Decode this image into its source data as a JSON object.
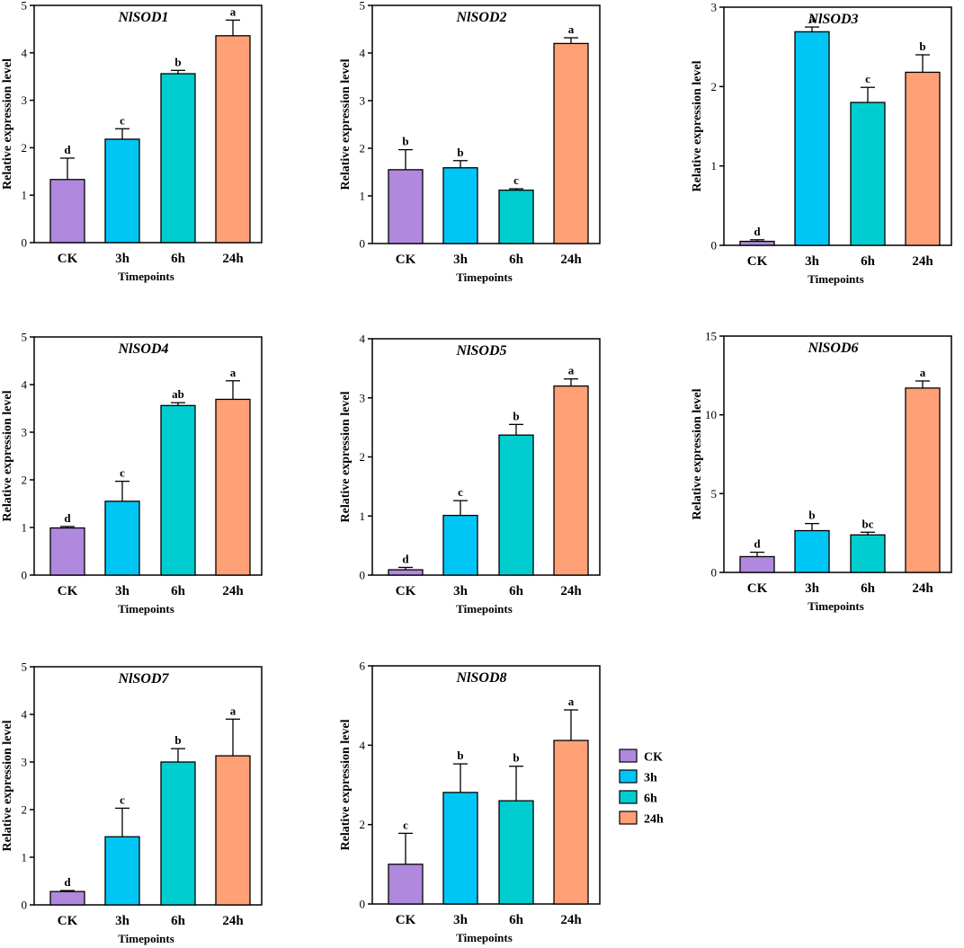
{
  "colors": {
    "CK": "#B088DD",
    "3h": "#00C6F5",
    "6h": "#00CDCF",
    "24h": "#FFA077"
  },
  "legend": {
    "items": [
      "CK",
      "3h",
      "6h",
      "24h"
    ]
  },
  "chart_data": [
    {
      "type": "bar",
      "title": "NlSOD1",
      "xlabel": "Timepoints",
      "ylabel": "Relative expression level",
      "categories": [
        "CK",
        "3h",
        "6h",
        "24h"
      ],
      "values": [
        1.33,
        2.18,
        3.56,
        4.36
      ],
      "errors": [
        0.45,
        0.22,
        0.07,
        0.33
      ],
      "labels": [
        "d",
        "c",
        "b",
        "a"
      ],
      "ylim": [
        0,
        5
      ],
      "yticks": [
        "0",
        "1",
        "2",
        "3",
        "4",
        "5"
      ]
    },
    {
      "type": "bar",
      "title": "NlSOD2",
      "xlabel": "Timepoints",
      "ylabel": "Relative expression level",
      "categories": [
        "CK",
        "3h",
        "6h",
        "24h"
      ],
      "values": [
        1.55,
        1.59,
        1.12,
        4.2
      ],
      "errors": [
        0.42,
        0.15,
        0.03,
        0.12
      ],
      "labels": [
        "b",
        "b",
        "c",
        "a"
      ],
      "ylim": [
        0,
        5
      ],
      "yticks": [
        "0",
        "1",
        "2",
        "3",
        "4",
        "5"
      ]
    },
    {
      "type": "bar",
      "title": "NlSOD3",
      "xlabel": "Timepoints",
      "ylabel": "Relative expression level",
      "categories": [
        "CK",
        "3h",
        "6h",
        "24h"
      ],
      "values": [
        0.05,
        2.69,
        1.8,
        2.18
      ],
      "errors": [
        0.02,
        0.06,
        0.19,
        0.22
      ],
      "labels": [
        "d",
        "a",
        "c",
        "b"
      ],
      "ylim": [
        0,
        3
      ],
      "yticks": [
        "0",
        "1",
        "2",
        "3"
      ]
    },
    {
      "type": "bar",
      "title": "NlSOD4",
      "xlabel": "Timepoints",
      "ylabel": "Relative expression level",
      "categories": [
        "CK",
        "3h",
        "6h",
        "24h"
      ],
      "values": [
        0.99,
        1.55,
        3.56,
        3.69
      ],
      "errors": [
        0.03,
        0.42,
        0.06,
        0.39
      ],
      "labels": [
        "d",
        "c",
        "ab",
        "a"
      ],
      "ylim": [
        0,
        5
      ],
      "yticks": [
        "0",
        "1",
        "2",
        "3",
        "4",
        "5"
      ]
    },
    {
      "type": "bar",
      "title": "NlSOD5",
      "xlabel": "Timepoints",
      "ylabel": "Relative expression level",
      "categories": [
        "CK",
        "3h",
        "6h",
        "24h"
      ],
      "values": [
        0.09,
        1.01,
        2.37,
        3.2
      ],
      "errors": [
        0.04,
        0.25,
        0.18,
        0.12
      ],
      "labels": [
        "d",
        "c",
        "b",
        "a"
      ],
      "ylim": [
        0,
        4
      ],
      "yticks": [
        "0",
        "1",
        "2",
        "3",
        "4"
      ]
    },
    {
      "type": "bar",
      "title": "NlSOD6",
      "xlabel": "Timepoints",
      "ylabel": "Relative expression level",
      "categories": [
        "CK",
        "3h",
        "6h",
        "24h"
      ],
      "values": [
        1.0,
        2.65,
        2.38,
        11.7
      ],
      "errors": [
        0.28,
        0.45,
        0.17,
        0.45
      ],
      "labels": [
        "d",
        "b",
        "bc",
        "a"
      ],
      "ylim": [
        0,
        15
      ],
      "yticks": [
        "0",
        "5",
        "10",
        "15"
      ]
    },
    {
      "type": "bar",
      "title": "NlSOD7",
      "xlabel": "Timepoints",
      "ylabel": "Relative expression level",
      "categories": [
        "CK",
        "3h",
        "6h",
        "24h"
      ],
      "values": [
        0.28,
        1.43,
        3.0,
        3.13
      ],
      "errors": [
        0.02,
        0.6,
        0.28,
        0.77
      ],
      "labels": [
        "d",
        "c",
        "b",
        "a"
      ],
      "ylim": [
        0,
        5
      ],
      "yticks": [
        "0",
        "1",
        "2",
        "3",
        "4",
        "5"
      ]
    },
    {
      "type": "bar",
      "title": "NlSOD8",
      "xlabel": "Timepoints",
      "ylabel": "Relative expression level",
      "categories": [
        "CK",
        "3h",
        "6h",
        "24h"
      ],
      "values": [
        1.0,
        2.81,
        2.6,
        4.12
      ],
      "errors": [
        0.78,
        0.72,
        0.87,
        0.77
      ],
      "labels": [
        "c",
        "b",
        "b",
        "a"
      ],
      "ylim": [
        0,
        6
      ],
      "yticks": [
        "0",
        "2",
        "4",
        "6"
      ]
    }
  ]
}
